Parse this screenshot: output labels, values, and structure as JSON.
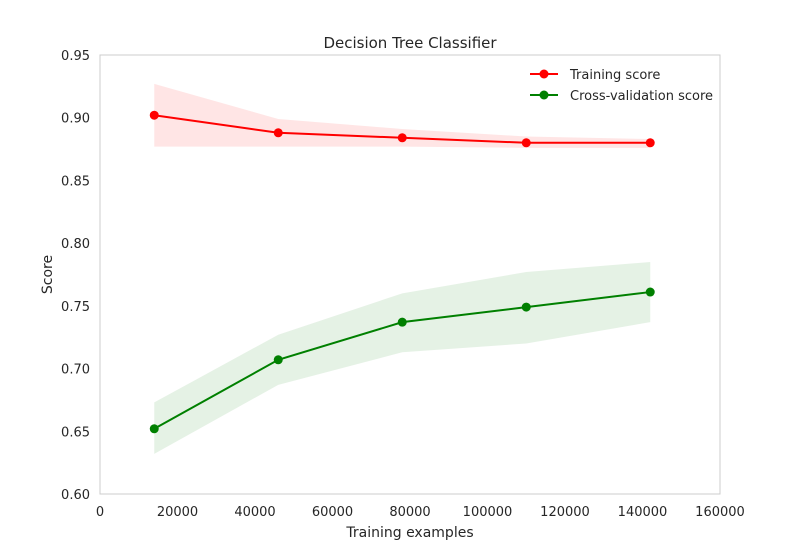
{
  "chart_data": {
    "type": "line",
    "title": "Decision Tree Classifier",
    "xlabel": "Training examples",
    "ylabel": "Score",
    "xlim": [
      0,
      160000
    ],
    "ylim": [
      0.6,
      0.95
    ],
    "x_ticks": [
      0,
      20000,
      40000,
      60000,
      80000,
      100000,
      120000,
      140000,
      160000
    ],
    "y_ticks": [
      0.6,
      0.65,
      0.7,
      0.75,
      0.8,
      0.85,
      0.9,
      0.95
    ],
    "x_tick_labels": [
      "0",
      "20000",
      "40000",
      "60000",
      "80000",
      "100000",
      "120000",
      "140000",
      "160000"
    ],
    "y_tick_labels": [
      "0.60",
      "0.65",
      "0.70",
      "0.75",
      "0.80",
      "0.85",
      "0.90",
      "0.95"
    ],
    "grid": false,
    "legend_position": "top-right",
    "x": [
      14000,
      46000,
      78000,
      110000,
      142000
    ],
    "series": [
      {
        "name": "Training score",
        "color": "#ff0000",
        "values": [
          0.902,
          0.888,
          0.884,
          0.88,
          0.88
        ],
        "lower": [
          0.877,
          0.877,
          0.877,
          0.876,
          0.876
        ],
        "upper": [
          0.927,
          0.899,
          0.891,
          0.885,
          0.883
        ]
      },
      {
        "name": "Cross-validation score",
        "color": "#008000",
        "values": [
          0.652,
          0.707,
          0.737,
          0.749,
          0.761
        ],
        "lower": [
          0.632,
          0.687,
          0.713,
          0.72,
          0.737
        ],
        "upper": [
          0.673,
          0.727,
          0.76,
          0.777,
          0.785
        ]
      }
    ]
  }
}
